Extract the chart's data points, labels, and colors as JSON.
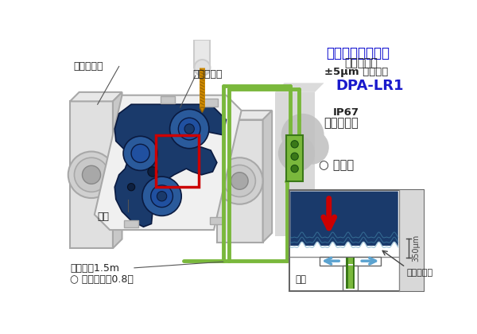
{
  "bg_color": "#ffffff",
  "title_text": "精密气压式传感器",
  "title_color": "#0000cc",
  "subtitle1": "超大间隙型",
  "subtitle2": "±5μm 重复精度",
  "model": "DPA-LR1",
  "model_color": "#1a1acc",
  "label_ip67": "IP67",
  "label_install": "可机内设置",
  "label_judge": "○ 可判别",
  "label_xuanzhuan": "旋转工作台",
  "label_yazhu": "压铸发动机",
  "label_jiaju": "夹具",
  "label_airpipe": "空气配管1.5m",
  "label_response": "○ 反应速度：0.8秒",
  "label_air": "空气",
  "label_roughness": "接触面粗糙",
  "label_350um": "350μm",
  "green_color": "#7ab83c",
  "dark_green": "#3a7818",
  "blue_dark": "#1a3a6b",
  "blue_mid": "#2a5a9b",
  "blue_light": "#5ba3d0",
  "red_color": "#cc0000",
  "gray1": "#c8c8c8",
  "gray2": "#e0e0e0",
  "gray3": "#a8a8a8",
  "gray4": "#d0d0d0",
  "gray5": "#b8b8b8"
}
